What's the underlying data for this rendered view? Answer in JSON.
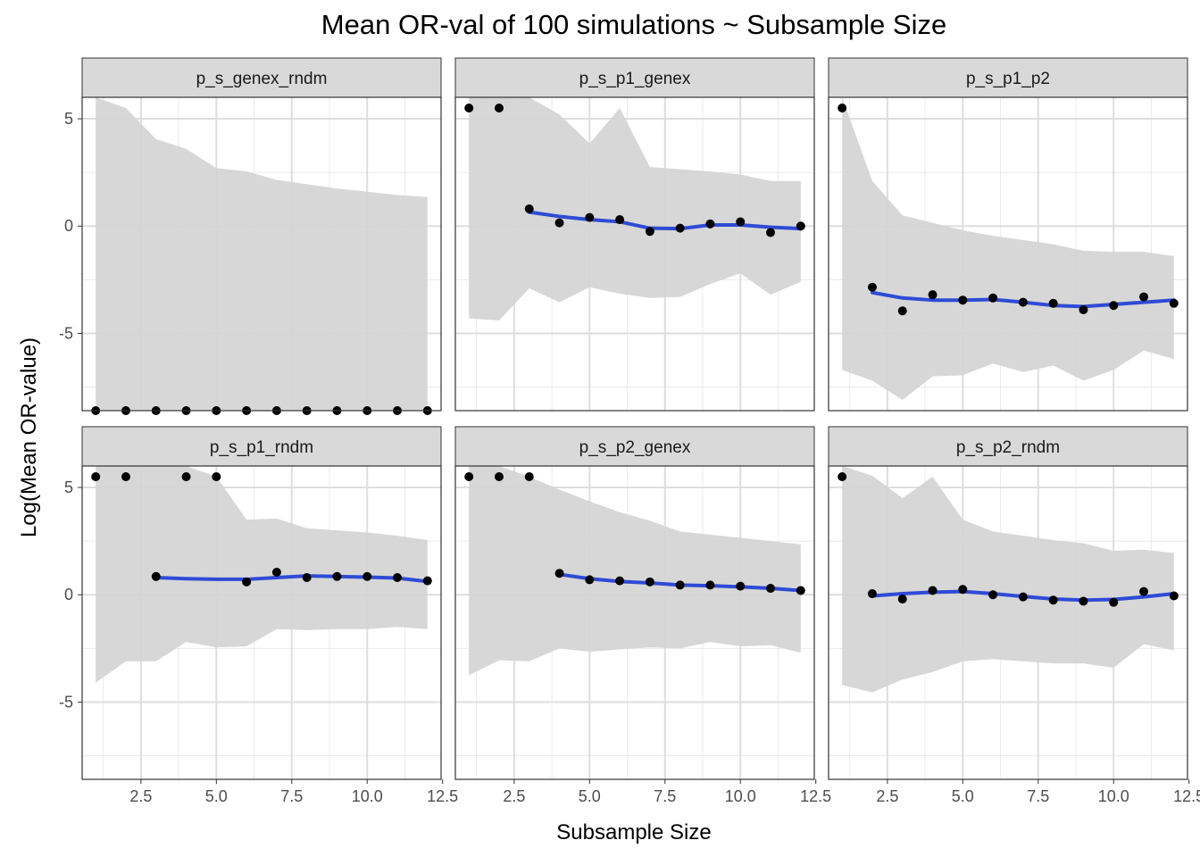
{
  "chart_data": {
    "type": "scatter",
    "title": "Mean OR-val of 100 simulations ~ Subsample Size",
    "xlabel": "Subsample Size",
    "ylabel": "Log(Mean OR-value)",
    "xlim": [
      0.55,
      12.45
    ],
    "ylim": [
      -8.6,
      6.0
    ],
    "x_ticks": [
      2.5,
      5.0,
      7.5,
      10.0,
      12.5
    ],
    "x_tick_labels": [
      "2.5",
      "5.0",
      "7.5",
      "10.0",
      "12.5"
    ],
    "y_ticks": [
      -5,
      0,
      5
    ],
    "y_tick_labels": [
      "-5",
      "0",
      "5"
    ],
    "grid": true,
    "point_color": "#000000",
    "smooth_color": "#2e4bd6",
    "band_color": "#d4d4d4",
    "strip_color": "#d9d9d9",
    "panels": [
      {
        "name": "p_s_genex_rndm",
        "points": [
          [
            1,
            -8.6
          ],
          [
            2,
            -8.6
          ],
          [
            3,
            -8.6
          ],
          [
            4,
            -8.6
          ],
          [
            5,
            -8.6
          ],
          [
            6,
            -8.6
          ],
          [
            7,
            -8.6
          ],
          [
            8,
            -8.6
          ],
          [
            9,
            -8.6
          ],
          [
            10,
            -8.6
          ],
          [
            11,
            -8.6
          ],
          [
            12,
            -8.6
          ]
        ],
        "band": [
          [
            1,
            -8.6,
            6.0
          ],
          [
            2,
            -8.6,
            5.5
          ],
          [
            3,
            -8.6,
            4.05
          ],
          [
            4,
            -8.6,
            3.6
          ],
          [
            5,
            -8.6,
            2.7
          ],
          [
            6,
            -8.6,
            2.55
          ],
          [
            7,
            -8.6,
            2.15
          ],
          [
            8,
            -8.6,
            1.95
          ],
          [
            9,
            -8.6,
            1.75
          ],
          [
            10,
            -8.6,
            1.6
          ],
          [
            11,
            -8.6,
            1.45
          ],
          [
            12,
            -8.6,
            1.35
          ]
        ],
        "smooth": []
      },
      {
        "name": "p_s_p1_genex",
        "points": [
          [
            1,
            5.5
          ],
          [
            2,
            5.5
          ],
          [
            3,
            0.8
          ],
          [
            4,
            0.15
          ],
          [
            5,
            0.4
          ],
          [
            6,
            0.3
          ],
          [
            7,
            -0.25
          ],
          [
            8,
            -0.1
          ],
          [
            9,
            0.1
          ],
          [
            10,
            0.2
          ],
          [
            11,
            -0.3
          ],
          [
            12,
            0.0
          ]
        ],
        "band": [
          [
            1,
            -4.3,
            6.0
          ],
          [
            2,
            -4.4,
            6.0
          ],
          [
            3,
            -2.9,
            6.0
          ],
          [
            4,
            -3.55,
            5.2
          ],
          [
            5,
            -2.85,
            3.85
          ],
          [
            6,
            -3.15,
            5.5
          ],
          [
            7,
            -3.35,
            2.75
          ],
          [
            8,
            -3.3,
            2.65
          ],
          [
            9,
            -2.7,
            2.55
          ],
          [
            10,
            -2.2,
            2.4
          ],
          [
            11,
            -3.2,
            2.1
          ],
          [
            12,
            -2.6,
            2.1
          ]
        ],
        "smooth": [
          [
            3,
            0.65
          ],
          [
            4,
            0.45
          ],
          [
            5,
            0.3
          ],
          [
            6,
            0.2
          ],
          [
            7,
            -0.1
          ],
          [
            8,
            -0.12
          ],
          [
            9,
            0.05
          ],
          [
            10,
            0.05
          ],
          [
            11,
            -0.05
          ],
          [
            12,
            -0.12
          ]
        ]
      },
      {
        "name": "p_s_p1_p2",
        "points": [
          [
            1,
            5.5
          ],
          [
            2,
            -2.85
          ],
          [
            3,
            -3.95
          ],
          [
            4,
            -3.2
          ],
          [
            5,
            -3.45
          ],
          [
            6,
            -3.35
          ],
          [
            7,
            -3.55
          ],
          [
            8,
            -3.6
          ],
          [
            9,
            -3.9
          ],
          [
            10,
            -3.7
          ],
          [
            11,
            -3.3
          ],
          [
            12,
            -3.6
          ]
        ],
        "band": [
          [
            1,
            -6.7,
            6.0
          ],
          [
            2,
            -7.2,
            2.1
          ],
          [
            3,
            -8.1,
            0.5
          ],
          [
            4,
            -7.0,
            0.15
          ],
          [
            5,
            -6.95,
            -0.2
          ],
          [
            6,
            -6.4,
            -0.45
          ],
          [
            7,
            -6.8,
            -0.65
          ],
          [
            8,
            -6.5,
            -0.85
          ],
          [
            9,
            -7.2,
            -1.15
          ],
          [
            10,
            -6.7,
            -1.2
          ],
          [
            11,
            -5.8,
            -1.2
          ],
          [
            12,
            -6.2,
            -1.4
          ]
        ],
        "smooth": [
          [
            2,
            -3.1
          ],
          [
            3,
            -3.35
          ],
          [
            4,
            -3.45
          ],
          [
            5,
            -3.45
          ],
          [
            6,
            -3.42
          ],
          [
            7,
            -3.55
          ],
          [
            8,
            -3.7
          ],
          [
            9,
            -3.75
          ],
          [
            10,
            -3.65
          ],
          [
            11,
            -3.55
          ],
          [
            12,
            -3.45
          ]
        ]
      },
      {
        "name": "p_s_p1_rndm",
        "points": [
          [
            1,
            5.5
          ],
          [
            2,
            5.5
          ],
          [
            3,
            0.85
          ],
          [
            4,
            5.5
          ],
          [
            5,
            5.5
          ],
          [
            6,
            0.6
          ],
          [
            7,
            1.05
          ],
          [
            8,
            0.8
          ],
          [
            9,
            0.85
          ],
          [
            10,
            0.85
          ],
          [
            11,
            0.8
          ],
          [
            12,
            0.65
          ]
        ],
        "band": [
          [
            1,
            -4.1,
            6.0
          ],
          [
            2,
            -3.1,
            6.0
          ],
          [
            3,
            -3.1,
            6.0
          ],
          [
            4,
            -2.2,
            6.0
          ],
          [
            5,
            -2.45,
            5.5
          ],
          [
            6,
            -2.4,
            3.5
          ],
          [
            7,
            -1.6,
            3.55
          ],
          [
            8,
            -1.65,
            3.1
          ],
          [
            9,
            -1.6,
            3.0
          ],
          [
            10,
            -1.6,
            2.9
          ],
          [
            11,
            -1.5,
            2.75
          ],
          [
            12,
            -1.6,
            2.55
          ]
        ],
        "smooth": [
          [
            3,
            0.8
          ],
          [
            4,
            0.75
          ],
          [
            5,
            0.72
          ],
          [
            6,
            0.72
          ],
          [
            7,
            0.8
          ],
          [
            8,
            0.88
          ],
          [
            9,
            0.85
          ],
          [
            10,
            0.82
          ],
          [
            11,
            0.78
          ],
          [
            12,
            0.62
          ]
        ]
      },
      {
        "name": "p_s_p2_genex",
        "points": [
          [
            1,
            5.5
          ],
          [
            2,
            5.5
          ],
          [
            3,
            5.5
          ],
          [
            4,
            1.0
          ],
          [
            5,
            0.7
          ],
          [
            6,
            0.65
          ],
          [
            7,
            0.6
          ],
          [
            8,
            0.45
          ],
          [
            9,
            0.45
          ],
          [
            10,
            0.4
          ],
          [
            11,
            0.3
          ],
          [
            12,
            0.2
          ]
        ],
        "band": [
          [
            1,
            -3.75,
            6.0
          ],
          [
            2,
            -3.05,
            6.0
          ],
          [
            3,
            -3.1,
            5.5
          ],
          [
            4,
            -2.5,
            4.9
          ],
          [
            5,
            -2.65,
            4.35
          ],
          [
            6,
            -2.55,
            3.85
          ],
          [
            7,
            -2.45,
            3.45
          ],
          [
            8,
            -2.5,
            2.95
          ],
          [
            9,
            -2.2,
            2.8
          ],
          [
            10,
            -2.4,
            2.65
          ],
          [
            11,
            -2.35,
            2.5
          ],
          [
            12,
            -2.7,
            2.35
          ]
        ],
        "smooth": [
          [
            4,
            0.95
          ],
          [
            5,
            0.75
          ],
          [
            6,
            0.62
          ],
          [
            7,
            0.55
          ],
          [
            8,
            0.45
          ],
          [
            9,
            0.42
          ],
          [
            10,
            0.37
          ],
          [
            11,
            0.3
          ],
          [
            12,
            0.2
          ]
        ]
      },
      {
        "name": "p_s_p2_rndm",
        "points": [
          [
            1,
            5.5
          ],
          [
            2,
            0.05
          ],
          [
            3,
            -0.2
          ],
          [
            4,
            0.2
          ],
          [
            5,
            0.25
          ],
          [
            6,
            0.0
          ],
          [
            7,
            -0.1
          ],
          [
            8,
            -0.25
          ],
          [
            9,
            -0.3
          ],
          [
            10,
            -0.35
          ],
          [
            11,
            0.15
          ],
          [
            12,
            -0.05
          ]
        ],
        "band": [
          [
            1,
            -4.2,
            6.0
          ],
          [
            2,
            -4.55,
            5.55
          ],
          [
            3,
            -3.95,
            4.5
          ],
          [
            4,
            -3.6,
            5.5
          ],
          [
            5,
            -3.1,
            3.5
          ],
          [
            6,
            -3.0,
            2.95
          ],
          [
            7,
            -3.1,
            2.75
          ],
          [
            8,
            -3.2,
            2.55
          ],
          [
            9,
            -3.2,
            2.4
          ],
          [
            10,
            -3.4,
            2.05
          ],
          [
            11,
            -2.3,
            2.1
          ],
          [
            12,
            -2.6,
            1.95
          ]
        ],
        "smooth": [
          [
            2,
            -0.05
          ],
          [
            3,
            0.05
          ],
          [
            4,
            0.12
          ],
          [
            5,
            0.15
          ],
          [
            6,
            0.05
          ],
          [
            7,
            -0.08
          ],
          [
            8,
            -0.2
          ],
          [
            9,
            -0.25
          ],
          [
            10,
            -0.22
          ],
          [
            11,
            -0.1
          ],
          [
            12,
            0.05
          ]
        ]
      }
    ]
  }
}
